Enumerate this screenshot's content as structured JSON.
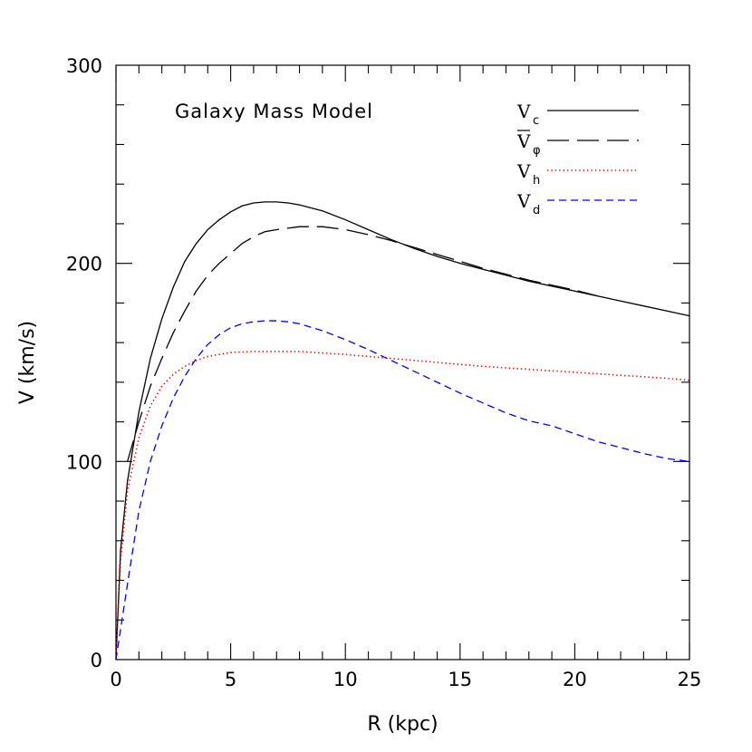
{
  "chart_data": {
    "type": "line",
    "title": "Galaxy Mass Model",
    "xlabel": "R (kpc)",
    "ylabel": "V (km/s)",
    "xlim": [
      0,
      25
    ],
    "ylim": [
      0,
      300
    ],
    "xticks": [
      0,
      5,
      10,
      15,
      20,
      25
    ],
    "yticks": [
      0,
      100,
      200,
      300
    ],
    "legend_position": "top-right",
    "series": [
      {
        "key": "vc",
        "name": "V_c",
        "label_main": "V",
        "label_sub": "c",
        "bar": false,
        "color": "#000000",
        "style": "solid",
        "x": [
          0,
          0.2,
          0.5,
          1,
          1.5,
          2,
          2.5,
          3,
          3.5,
          4,
          4.5,
          5,
          5.5,
          6,
          6.5,
          7,
          7.5,
          8,
          9,
          10,
          11,
          12,
          13,
          14,
          15,
          16,
          17,
          18,
          19,
          20,
          21,
          22,
          23,
          24,
          25
        ],
        "y": [
          0,
          55,
          90,
          125,
          152,
          172,
          188,
          201,
          210,
          217,
          222,
          226,
          229,
          230.5,
          231,
          231,
          230.5,
          229.5,
          226.5,
          222,
          217,
          212,
          207.5,
          203.5,
          200,
          197,
          194,
          191,
          188.5,
          186,
          183.5,
          181,
          178.5,
          176,
          173.5
        ]
      },
      {
        "key": "vphi",
        "name": "V̄_φ",
        "label_main": "V",
        "label_sub": "φ",
        "bar": true,
        "color": "#000000",
        "style": "long-dash",
        "x": [
          0.5,
          1,
          1.5,
          2,
          2.5,
          3,
          3.5,
          4,
          4.5,
          5,
          5.5,
          6,
          6.5,
          7,
          8,
          9,
          10,
          11,
          12,
          13,
          14,
          15,
          16,
          17,
          18,
          19,
          20,
          21
        ],
        "y": [
          100,
          120,
          138,
          152,
          165,
          176,
          186,
          194,
          200,
          205,
          210,
          213.5,
          216,
          217,
          218.5,
          218.5,
          217,
          214.5,
          211.5,
          208,
          204.5,
          201,
          197.5,
          194.5,
          191.5,
          189,
          186.5,
          183.5
        ]
      },
      {
        "key": "vh",
        "name": "V_h",
        "label_main": "V",
        "label_sub": "h",
        "bar": false,
        "color": "#ff0000",
        "style": "dotted",
        "x": [
          0,
          0.2,
          0.5,
          1,
          1.5,
          2,
          2.5,
          3,
          3.5,
          4,
          5,
          6,
          7,
          8,
          10,
          12,
          14,
          16,
          18,
          20,
          22,
          24,
          25
        ],
        "y": [
          0,
          50,
          85,
          112,
          128,
          138,
          144,
          148,
          151,
          153,
          155,
          155.5,
          155.5,
          155.5,
          154,
          152,
          150,
          148,
          146.5,
          145,
          143.5,
          142,
          141
        ]
      },
      {
        "key": "vd",
        "name": "V_d",
        "label_main": "V",
        "label_sub": "d",
        "bar": false,
        "color": "#0000ff",
        "style": "dashed",
        "x": [
          0,
          0.5,
          1,
          1.5,
          2,
          2.5,
          3,
          3.5,
          4,
          4.5,
          5,
          5.5,
          6,
          6.5,
          7,
          7.5,
          8,
          9,
          10,
          11,
          12,
          13,
          14,
          15,
          16,
          17,
          18,
          19,
          20,
          21,
          22,
          23,
          24,
          25
        ],
        "y": [
          0,
          38,
          75,
          100,
          118,
          132,
          143,
          152,
          159,
          164,
          167.5,
          169.5,
          170.5,
          171,
          171,
          170.5,
          169.5,
          166,
          161.5,
          156.5,
          151,
          145.5,
          140,
          134.5,
          129.5,
          124.5,
          120.5,
          118,
          114,
          110,
          107,
          104,
          101.5,
          100
        ]
      }
    ]
  }
}
